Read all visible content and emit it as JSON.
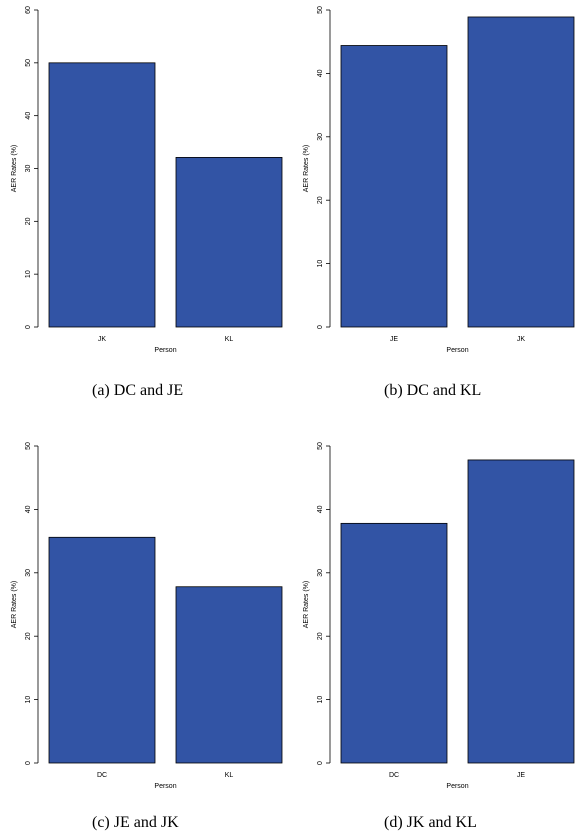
{
  "chart_data": [
    {
      "type": "bar",
      "caption": "(a)  DC and JE",
      "categories": [
        "JK",
        "KL"
      ],
      "values": [
        50.0,
        32.1
      ],
      "xlabel": "Person",
      "ylabel": "AER Rates (%)",
      "ylim": [
        0,
        60
      ],
      "yticks": [
        0,
        10,
        20,
        30,
        40,
        50,
        60
      ],
      "bar_color": "#3254a5"
    },
    {
      "type": "bar",
      "caption": "(b)  DC and KL",
      "categories": [
        "JE",
        "JK"
      ],
      "values": [
        44.4,
        48.9
      ],
      "xlabel": "Person",
      "ylabel": "AER Rates (%)",
      "ylim": [
        0,
        50
      ],
      "yticks": [
        0,
        10,
        20,
        30,
        40,
        50
      ],
      "bar_color": "#3254a5"
    },
    {
      "type": "bar",
      "caption": "(c)  JE and JK",
      "categories": [
        "DC",
        "KL"
      ],
      "values": [
        35.6,
        27.8
      ],
      "xlabel": "Person",
      "ylabel": "AER Rates (%)",
      "ylim": [
        0,
        50
      ],
      "yticks": [
        0,
        10,
        20,
        30,
        40,
        50
      ],
      "bar_color": "#3254a5"
    },
    {
      "type": "bar",
      "caption": "(d)  JK and KL",
      "categories": [
        "DC",
        "JE"
      ],
      "values": [
        37.8,
        47.8
      ],
      "xlabel": "Person",
      "ylabel": "AER Rates (%)",
      "ylim": [
        0,
        50
      ],
      "yticks": [
        0,
        10,
        20,
        30,
        40,
        50
      ],
      "bar_color": "#3254a5"
    }
  ]
}
